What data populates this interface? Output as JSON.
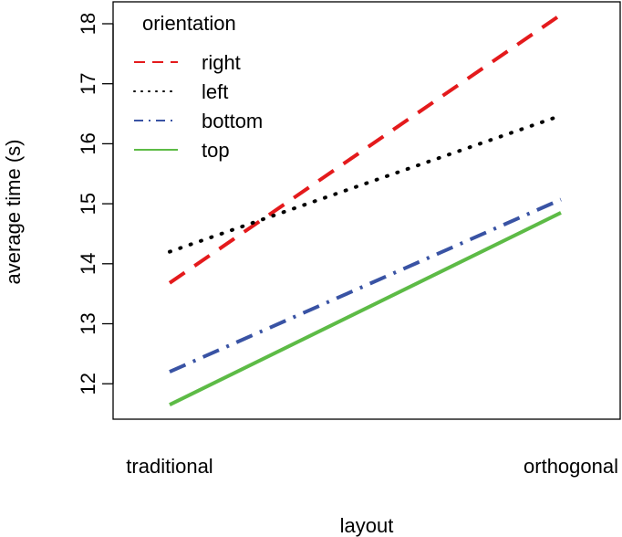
{
  "chart_data": {
    "type": "line",
    "title": "",
    "xlabel": "layout",
    "ylabel": "average time (s)",
    "categories": [
      "traditional",
      "orthogonal"
    ],
    "ylim": [
      11.4,
      18.3
    ],
    "yticks": [
      12,
      13,
      14,
      15,
      16,
      17,
      18
    ],
    "legend": {
      "title": "orientation",
      "position": "top-left"
    },
    "series": [
      {
        "name": "right",
        "values": [
          13.68,
          18.15
        ],
        "color": "#e41a1c",
        "linestyle": "dashed"
      },
      {
        "name": "left",
        "values": [
          14.2,
          16.47
        ],
        "color": "#000000",
        "linestyle": "dotted"
      },
      {
        "name": "bottom",
        "values": [
          12.2,
          15.07
        ],
        "color": "#3953a4",
        "linestyle": "dash-dot"
      },
      {
        "name": "top",
        "values": [
          11.65,
          14.85
        ],
        "color": "#5dbb46",
        "linestyle": "solid"
      }
    ]
  }
}
